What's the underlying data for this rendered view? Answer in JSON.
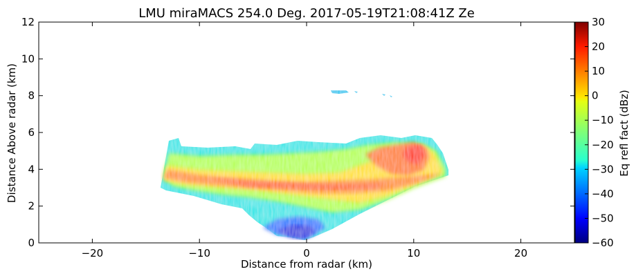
{
  "chart_data": {
    "type": "heatmap",
    "title": "LMU miraMACS 254.0 Deg. 2017-05-19T21:08:41Z  Ze",
    "xlabel": "Distance from radar (km)",
    "ylabel": "Distance Above radar  (km)",
    "xlim": [
      -25,
      25
    ],
    "ylim": [
      0,
      12
    ],
    "xticks": [
      "−20",
      "−10",
      "0",
      "10",
      "20"
    ],
    "xtick_values": [
      -20,
      -10,
      0,
      10,
      20
    ],
    "yticks": [
      "0",
      "2",
      "4",
      "6",
      "8",
      "10",
      "12"
    ],
    "ytick_values": [
      0,
      2,
      4,
      6,
      8,
      10,
      12
    ],
    "colorbar": {
      "label": "Eq refl fact (dBz)",
      "range": [
        -60,
        30
      ],
      "ticks": [
        "30",
        "20",
        "10",
        "0",
        "−10",
        "−20",
        "−30",
        "−40",
        "−50",
        "−60"
      ],
      "tick_values": [
        30,
        20,
        10,
        0,
        -10,
        -20,
        -30,
        -40,
        -50,
        -60
      ],
      "colormap": "jet"
    },
    "echo_regions": [
      {
        "feature": "main cloud band",
        "x_range": [
          -13.5,
          13.5
        ],
        "z_range": [
          0.2,
          5.8
        ],
        "dbz_range": [
          -45,
          15
        ]
      },
      {
        "feature": "core layer",
        "z_at_x_-13": 3.4,
        "z_at_x_0": 3.0,
        "z_at_x_13": 3.6,
        "dbz": 10
      },
      {
        "feature": "upper convective cell",
        "x_range": [
          6,
          12
        ],
        "z_range": [
          3.5,
          5.3
        ],
        "dbz": 15
      },
      {
        "feature": "low weak echoes",
        "x_range": [
          -4,
          4
        ],
        "z_range": [
          0.2,
          1.5
        ],
        "dbz": -40
      },
      {
        "feature": "high small cloud",
        "x_range": [
          2.5,
          8
        ],
        "z_range": [
          7.9,
          8.3
        ],
        "dbz": -30
      }
    ]
  }
}
